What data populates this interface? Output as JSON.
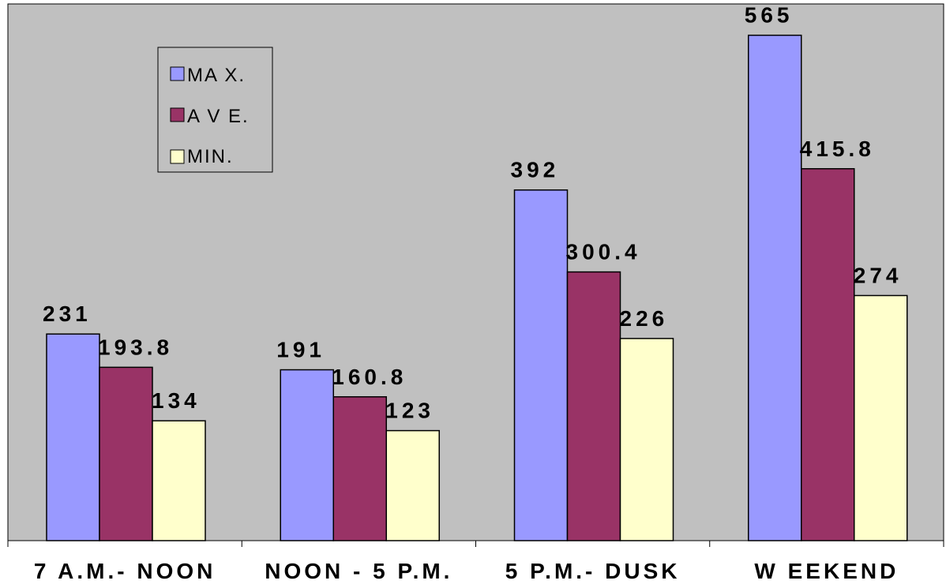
{
  "chart_data": {
    "type": "bar",
    "categories": [
      "7 A.M.- NOON",
      "NOON - 5 P.M.",
      "5 P.M.- DUSK",
      "W EEKEND"
    ],
    "series": [
      {
        "name": "MA X.",
        "values": [
          231,
          191,
          392,
          565
        ],
        "labels": [
          "231",
          "191",
          "392",
          "565"
        ],
        "color": "#9999ff"
      },
      {
        "name": "A V E.",
        "values": [
          193.8,
          160.8,
          300.4,
          415.8
        ],
        "labels": [
          "193.8",
          "160.8",
          "300.4",
          "415.8"
        ],
        "color": "#993366"
      },
      {
        "name": "MIN.",
        "values": [
          134,
          123,
          226,
          274
        ],
        "labels": [
          "134",
          "123",
          "226",
          "274"
        ],
        "color": "#ffffcc"
      }
    ],
    "ylim": [
      0,
      600
    ],
    "plot_background": "#c0c0c0",
    "grid": false,
    "legend_position": "top-left"
  }
}
